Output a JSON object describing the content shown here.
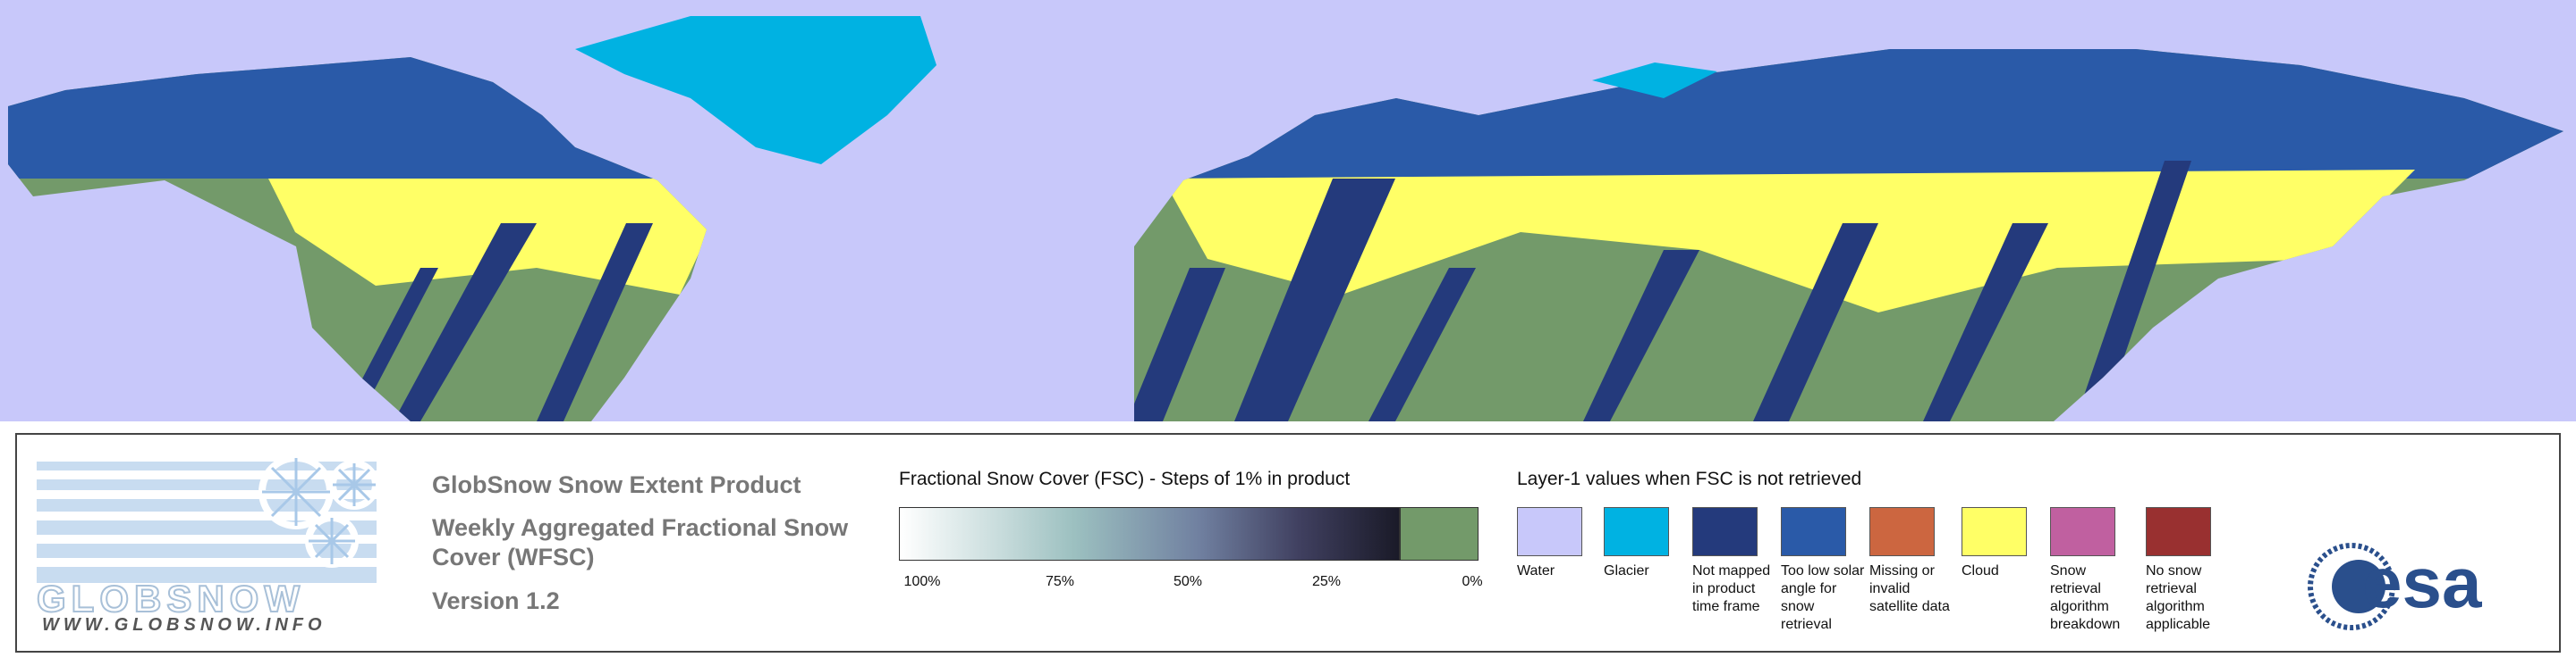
{
  "logo": {
    "name": "GLOBSNOW",
    "url": "WWW.GLOBSNOW.INFO"
  },
  "product": {
    "title": "GlobSnow Snow Extent Product",
    "subtitle": "Weekly Aggregated Fractional Snow Cover (WFSC)",
    "version": "Version 1.2"
  },
  "fsc_legend": {
    "title": "Fractional Snow Cover (FSC) - Steps of 1% in product",
    "ticks": [
      "100%",
      "75%",
      "50%",
      "25%",
      "0%"
    ]
  },
  "layer_legend": {
    "title": "Layer-1 values when FSC is not retrieved",
    "items": [
      {
        "label": "Water",
        "color": "#c8c8fa"
      },
      {
        "label": "Glacier",
        "color": "#00b2e2"
      },
      {
        "label": "Not mapped in product time frame",
        "color": "#243a7c"
      },
      {
        "label": "Too low solar angle for snow retrieval",
        "color": "#2a5aa8"
      },
      {
        "label": "Missing or invalid satellite data",
        "color": "#cc6640"
      },
      {
        "label": "Cloud",
        "color": "#ffff66"
      },
      {
        "label": "Snow retrieval algorithm breakdown",
        "color": "#c060a0"
      },
      {
        "label": "No snow retrieval algorithm applicable",
        "color": "#993030"
      }
    ]
  },
  "agency": "esa"
}
